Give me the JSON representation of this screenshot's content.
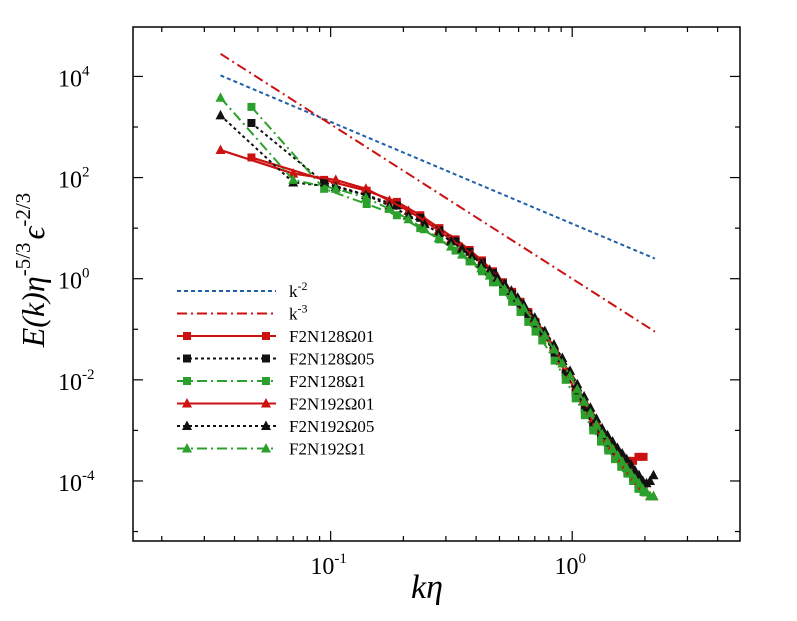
{
  "chart_data": {
    "type": "line",
    "title": "",
    "xlabel": "kη",
    "ylabel": "E(k)η^(-5/3) ε^(-2/3)",
    "ylabel_parts": {
      "main": "E(k)η",
      "exp1": "-5/3",
      "eps": "ϵ",
      "exp2": "-2/3"
    },
    "xscale": "log",
    "yscale": "log",
    "xlim": [
      0.0152,
      4.95
    ],
    "ylim": [
      6.5e-06,
      95000
    ],
    "x_ticks": [
      {
        "value": 0.1,
        "base": "10",
        "exp": "-1"
      },
      {
        "value": 1,
        "base": "10",
        "exp": "0"
      }
    ],
    "y_ticks": [
      {
        "value": 10000,
        "base": "10",
        "exp": "4"
      },
      {
        "value": 100,
        "base": "10",
        "exp": "2"
      },
      {
        "value": 1,
        "base": "10",
        "exp": "0"
      },
      {
        "value": 0.01,
        "base": "10",
        "exp": "-2"
      },
      {
        "value": 0.0001,
        "base": "10",
        "exp": "-4"
      }
    ],
    "legend_position": "lower-left",
    "series": [
      {
        "name": "k-2",
        "label_base": "k",
        "label_exp": "-2",
        "color": "#1f5fa8",
        "dash": "4,3",
        "marker": "none",
        "x": [
          0.035,
          2.2
        ],
        "y": [
          10500,
          2.5
        ]
      },
      {
        "name": "k-3",
        "label_base": "k",
        "label_exp": "-3",
        "color": "#cc1111",
        "dash": "10,4,2,4",
        "marker": "none",
        "x": [
          0.035,
          2.2
        ],
        "y": [
          28000,
          0.09
        ]
      },
      {
        "name": "F2N128Ω01",
        "label_base": "F2N128Ω01",
        "label_exp": "",
        "color": "#cc1111",
        "dash": "",
        "marker": "square",
        "x": [
          0.047,
          0.094,
          0.141,
          0.188,
          0.235,
          0.282,
          0.329,
          0.376,
          0.423,
          0.47,
          0.517,
          0.564,
          0.611,
          0.658,
          0.705,
          0.752,
          0.846,
          0.94,
          1.034,
          1.128,
          1.222,
          1.316,
          1.41,
          1.504,
          1.598,
          1.692,
          1.786,
          1.88,
          1.974
        ],
        "y": [
          250,
          90,
          55,
          33,
          18,
          10,
          6,
          3.7,
          2.3,
          1.4,
          0.85,
          0.55,
          0.35,
          0.22,
          0.14,
          0.09,
          0.035,
          0.014,
          0.006,
          0.0028,
          0.0014,
          0.0009,
          0.0006,
          0.0004,
          0.0003,
          0.00025,
          0.00025,
          0.0003,
          0.0003
        ]
      },
      {
        "name": "F2N128Ω05",
        "label_base": "F2N128Ω05",
        "label_exp": "",
        "color": "#111111",
        "dash": "3,3",
        "marker": "square",
        "x": [
          0.047,
          0.094,
          0.141,
          0.188,
          0.235,
          0.282,
          0.329,
          0.376,
          0.423,
          0.47,
          0.517,
          0.564,
          0.611,
          0.658,
          0.705,
          0.752,
          0.846,
          0.94,
          1.034,
          1.128,
          1.222,
          1.316,
          1.41,
          1.504,
          1.598,
          1.692,
          1.786,
          1.88,
          1.974
        ],
        "y": [
          1200,
          80,
          45,
          28,
          16,
          9,
          5.5,
          3.4,
          2.1,
          1.3,
          0.8,
          0.5,
          0.32,
          0.2,
          0.13,
          0.085,
          0.033,
          0.013,
          0.0055,
          0.0025,
          0.0012,
          0.0007,
          0.00045,
          0.0003,
          0.0002,
          0.00016,
          0.00012,
          0.0001,
          8e-05
        ]
      },
      {
        "name": "F2N128Ω1",
        "label_base": "F2N128Ω1",
        "label_exp": "",
        "color": "#2ca02c",
        "dash": "10,4,2,4",
        "marker": "square",
        "x": [
          0.047,
          0.094,
          0.141,
          0.188,
          0.235,
          0.282,
          0.329,
          0.376,
          0.423,
          0.47,
          0.517,
          0.564,
          0.611,
          0.658,
          0.705,
          0.752,
          0.846,
          0.94,
          1.034,
          1.128,
          1.222,
          1.316,
          1.41,
          1.504,
          1.598,
          1.692,
          1.786,
          1.88,
          1.974
        ],
        "y": [
          2500,
          60,
          30,
          18,
          10,
          6,
          3.6,
          2.2,
          1.4,
          0.85,
          0.55,
          0.35,
          0.22,
          0.14,
          0.09,
          0.06,
          0.024,
          0.01,
          0.0043,
          0.002,
          0.001,
          0.0006,
          0.0004,
          0.00027,
          0.00019,
          0.00014,
          0.0001,
          7e-05,
          6e-05
        ]
      },
      {
        "name": "F2N192Ω01",
        "label_base": "F2N192Ω01",
        "label_exp": "",
        "color": "#cc1111",
        "dash": "",
        "marker": "triangle",
        "x": [
          0.035,
          0.07,
          0.105,
          0.14,
          0.175,
          0.21,
          0.245,
          0.28,
          0.315,
          0.35,
          0.385,
          0.42,
          0.455,
          0.49,
          0.525,
          0.56,
          0.595,
          0.63,
          0.7,
          0.77,
          0.84,
          0.91,
          0.98,
          1.05,
          1.12,
          1.19,
          1.26,
          1.33,
          1.4,
          1.47,
          1.54,
          1.61,
          1.68,
          1.75,
          1.82,
          1.89,
          1.96,
          2.03,
          2.1,
          2.17
        ],
        "y": [
          350,
          120,
          90,
          60,
          35,
          22,
          14,
          9,
          6,
          4.2,
          3,
          2.1,
          1.5,
          1.1,
          0.8,
          0.58,
          0.42,
          0.3,
          0.16,
          0.085,
          0.045,
          0.024,
          0.013,
          0.007,
          0.004,
          0.0024,
          0.0015,
          0.001,
          0.0007,
          0.0005,
          0.00037,
          0.00028,
          0.00021,
          0.00016,
          0.00012,
          0.0001,
          8e-05,
          6e-05,
          5e-05,
          5e-05
        ]
      },
      {
        "name": "F2N192Ω05",
        "label_base": "F2N192Ω05",
        "label_exp": "",
        "color": "#111111",
        "dash": "3,3",
        "marker": "triangle",
        "x": [
          0.035,
          0.07,
          0.105,
          0.14,
          0.175,
          0.21,
          0.245,
          0.28,
          0.315,
          0.35,
          0.385,
          0.42,
          0.455,
          0.49,
          0.525,
          0.56,
          0.595,
          0.63,
          0.7,
          0.77,
          0.84,
          0.91,
          0.98,
          1.05,
          1.12,
          1.19,
          1.26,
          1.33,
          1.4,
          1.47,
          1.54,
          1.61,
          1.68,
          1.75,
          1.82,
          1.89,
          1.96,
          2.03,
          2.1,
          2.17
        ],
        "y": [
          1700,
          80,
          65,
          45,
          28,
          18,
          12,
          8,
          5.5,
          3.9,
          2.8,
          2,
          1.45,
          1.05,
          0.78,
          0.57,
          0.42,
          0.31,
          0.17,
          0.092,
          0.05,
          0.027,
          0.015,
          0.0082,
          0.0047,
          0.0028,
          0.0017,
          0.0011,
          0.0008,
          0.0006,
          0.00045,
          0.00035,
          0.00027,
          0.00021,
          0.00016,
          0.00013,
          0.0001,
          9e-05,
          0.0001,
          0.00013
        ]
      },
      {
        "name": "F2N192Ω1",
        "label_base": "F2N192Ω1",
        "label_exp": "",
        "color": "#2ca02c",
        "dash": "10,4,2,4",
        "marker": "triangle",
        "x": [
          0.035,
          0.07,
          0.105,
          0.14,
          0.175,
          0.21,
          0.245,
          0.28,
          0.315,
          0.35,
          0.385,
          0.42,
          0.455,
          0.49,
          0.525,
          0.56,
          0.595,
          0.63,
          0.7,
          0.77,
          0.84,
          0.91,
          0.98,
          1.05,
          1.12,
          1.19,
          1.26,
          1.33,
          1.4,
          1.47,
          1.54,
          1.61,
          1.68,
          1.75,
          1.82,
          1.89,
          1.96,
          2.03,
          2.1,
          2.17
        ],
        "y": [
          3800,
          90,
          60,
          40,
          24,
          15,
          9.5,
          6.3,
          4.3,
          3,
          2.2,
          1.6,
          1.15,
          0.85,
          0.63,
          0.47,
          0.35,
          0.26,
          0.14,
          0.075,
          0.04,
          0.021,
          0.012,
          0.0065,
          0.0037,
          0.0022,
          0.0013,
          0.00085,
          0.0006,
          0.00043,
          0.00032,
          0.00024,
          0.00018,
          0.00014,
          0.00011,
          9e-05,
          7e-05,
          6e-05,
          5e-05,
          5e-05
        ]
      }
    ]
  }
}
